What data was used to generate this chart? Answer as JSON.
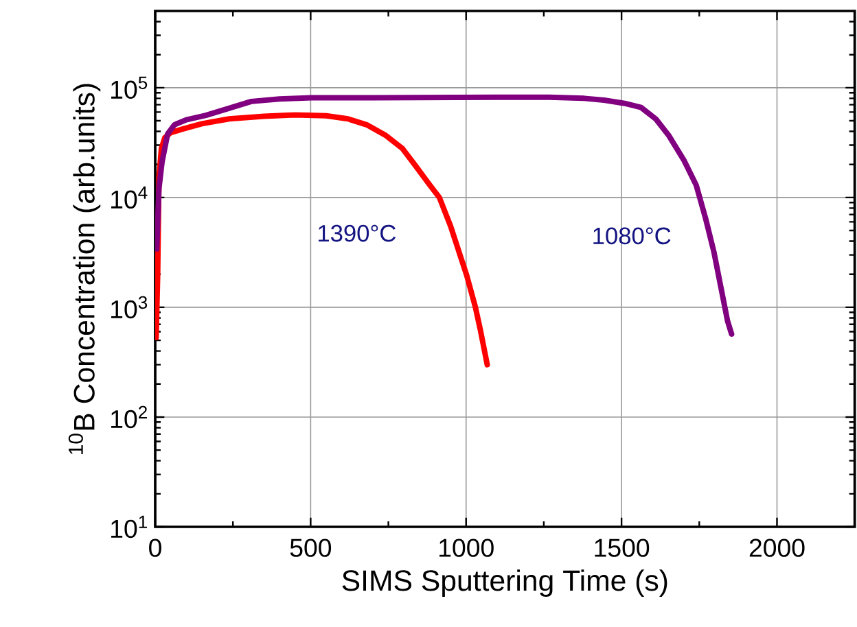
{
  "chart_data": {
    "type": "line",
    "xlabel": "SIMS Sputtering Time (s)",
    "ylabel": "$^{10}$B Concentration (arb.units)",
    "xlim": [
      0,
      2250
    ],
    "xticks": [
      0,
      500,
      1000,
      1500,
      2000
    ],
    "ylim": [
      10,
      500000
    ],
    "yticks": [
      {
        "value": 10,
        "label": "10$^{1}$"
      },
      {
        "value": 100,
        "label": "10$^{2}$"
      },
      {
        "value": 1000,
        "label": "10$^{3}$"
      },
      {
        "value": 10000,
        "label": "10$^{4}$"
      },
      {
        "value": 100000,
        "label": "10$^{5}$"
      }
    ],
    "log": "y",
    "grid": true,
    "marker": "none",
    "line_style": "solid",
    "series": [
      {
        "color": "#ff0000",
        "x": [
          3,
          8,
          12,
          20,
          31,
          50,
          88,
          150,
          238,
          350,
          450,
          550,
          620,
          680,
          740,
          795,
          840,
          883,
          914,
          950,
          1002,
          1030,
          1046,
          1068
        ],
        "values": [
          530,
          2000,
          15000,
          28000,
          35000,
          39000,
          42000,
          47000,
          52000,
          55000,
          56500,
          55500,
          52000,
          46000,
          37000,
          28000,
          19000,
          13000,
          10000,
          5500,
          1950,
          1000,
          620,
          300
        ]
      },
      {
        "color": "#800080",
        "x": [
          5,
          12,
          22,
          40,
          62,
          100,
          163,
          230,
          309,
          400,
          503,
          700,
          900,
          1100,
          1267,
          1380,
          1444,
          1510,
          1563,
          1610,
          1651,
          1700,
          1740,
          1770,
          1797,
          1820,
          1841,
          1854
        ],
        "values": [
          3400,
          12000,
          21000,
          38000,
          46000,
          51000,
          56000,
          64000,
          75000,
          79000,
          81000,
          81000,
          81500,
          82000,
          82000,
          80000,
          77000,
          72000,
          66000,
          52000,
          37000,
          22000,
          13000,
          6500,
          3200,
          1500,
          750,
          570
        ]
      }
    ],
    "annotations": [
      "1390°C",
      "1080°C"
    ]
  }
}
